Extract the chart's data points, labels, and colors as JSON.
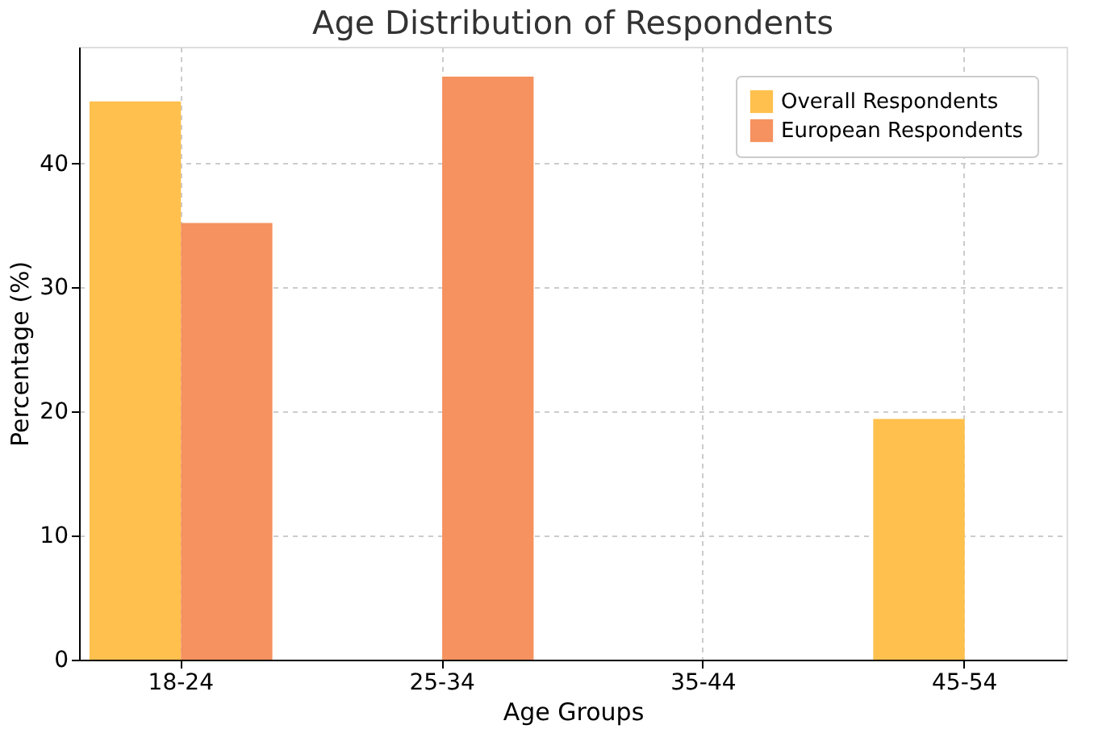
{
  "chart_data": {
    "type": "bar",
    "title": "Age Distribution of Respondents",
    "xlabel": "Age Groups",
    "ylabel": "Percentage (%)",
    "categories": [
      "18-24",
      "25-34",
      "35-44",
      "45-54"
    ],
    "series": [
      {
        "name": "Overall Respondents",
        "color": "#ffc04d",
        "values": [
          45,
          0,
          0,
          19.4
        ]
      },
      {
        "name": "European Respondents",
        "color": "#f5925f",
        "values": [
          35.2,
          47,
          0,
          0
        ]
      }
    ],
    "ylim": [
      0,
      49.4
    ],
    "yticks": [
      0,
      10,
      20,
      30,
      40
    ],
    "grid": true,
    "legend": "top right"
  }
}
